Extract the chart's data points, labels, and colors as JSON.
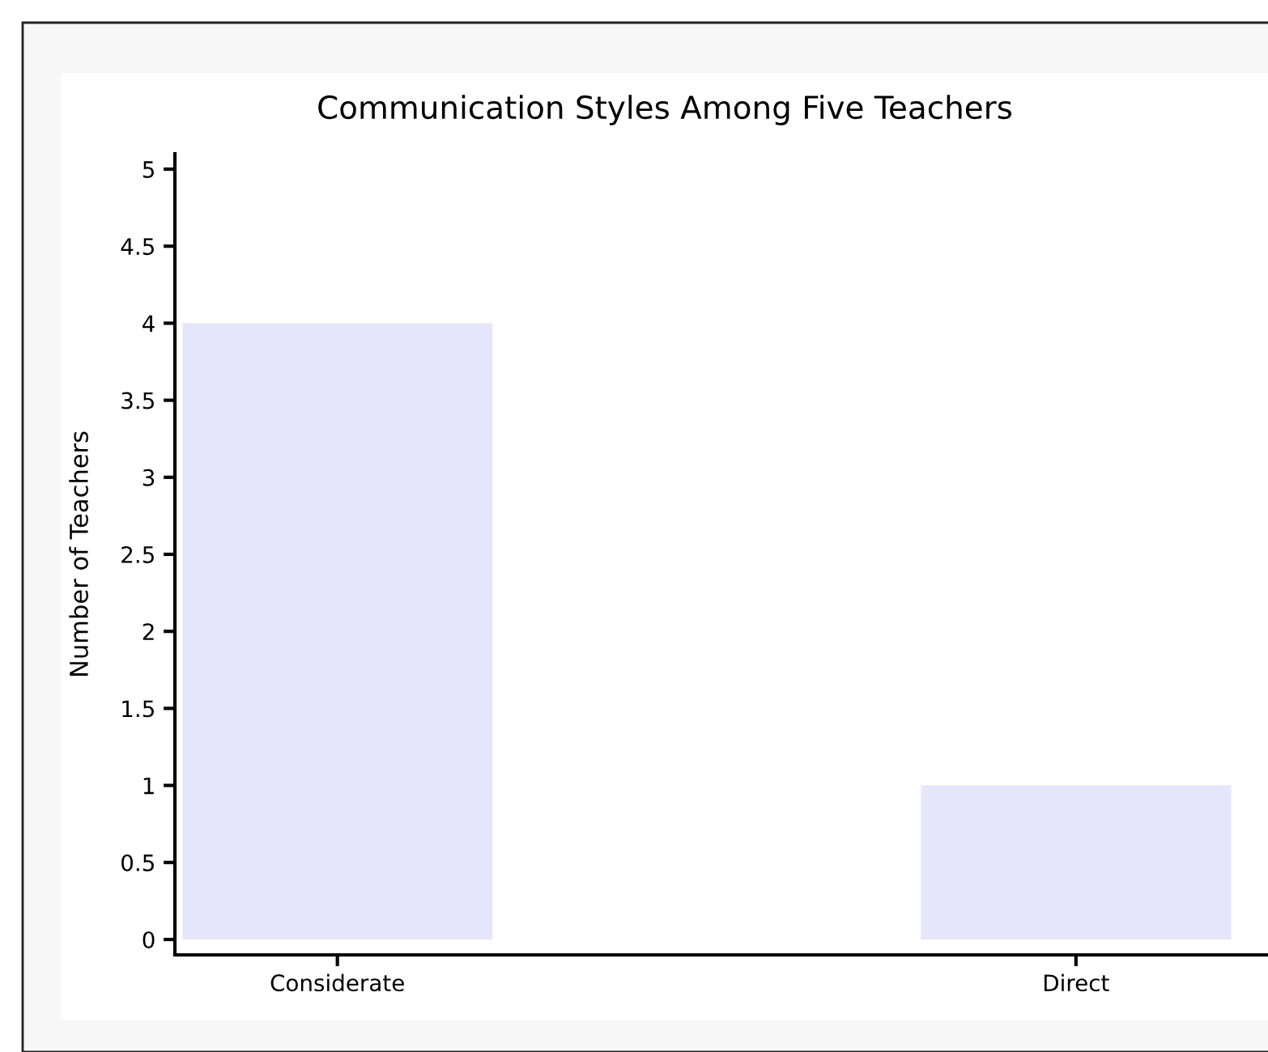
{
  "chart_data": {
    "type": "bar",
    "title": "Communication Styles Among Five Teachers",
    "ylabel": "Number of Teachers",
    "categories": [
      "Considerate",
      "Direct"
    ],
    "values": [
      4,
      1
    ],
    "color": "#e6e6fa",
    "ylim": [
      -0.1,
      5.1
    ],
    "yticks": [
      0,
      0.5,
      1,
      1.5,
      2,
      2.5,
      3,
      3.5,
      4,
      4.5,
      5
    ]
  }
}
